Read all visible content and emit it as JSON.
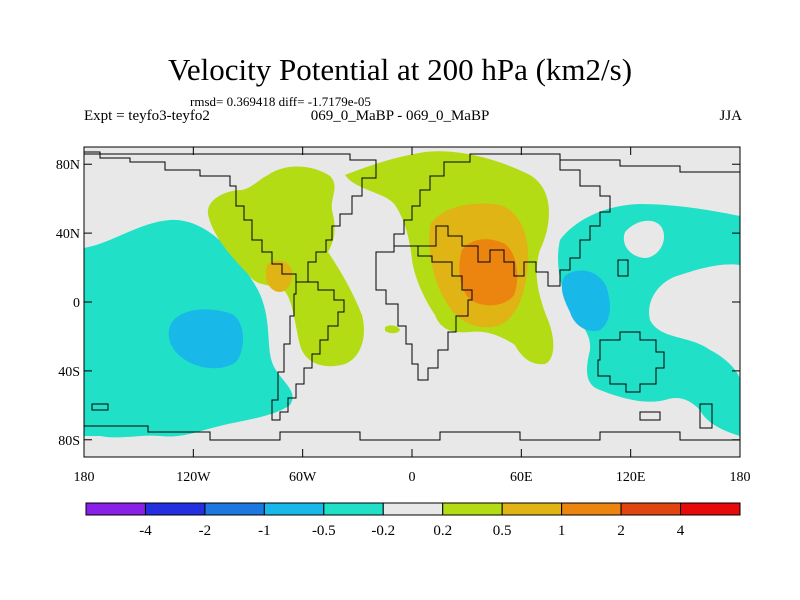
{
  "title": "Velocity Potential at 200 hPa (km2/s)",
  "stats": "rmsd= 0.369418  diff= -1.7179e-05",
  "left_label": "Expt = teyfo3-teyfo2",
  "center_label": "069_0_MaBP - 069_0_MaBP",
  "right_label": "JJA",
  "lat_ticks": [
    {
      "label": "80N",
      "value": 80
    },
    {
      "label": "40N",
      "value": 40
    },
    {
      "label": "0",
      "value": 0
    },
    {
      "label": "40S",
      "value": -40
    },
    {
      "label": "80S",
      "value": -80
    }
  ],
  "lon_ticks": [
    {
      "label": "180",
      "value": -180
    },
    {
      "label": "120W",
      "value": -120
    },
    {
      "label": "60W",
      "value": -60
    },
    {
      "label": "0",
      "value": 0
    },
    {
      "label": "60E",
      "value": 60
    },
    {
      "label": "120E",
      "value": 120
    },
    {
      "label": "180",
      "value": 180
    }
  ],
  "colorbar": {
    "labels": [
      "-4",
      "-2",
      "-1",
      "-0.5",
      "-0.2",
      "0.2",
      "0.5",
      "1",
      "2",
      "4"
    ],
    "colors": [
      "#8a20e8",
      "#2430e0",
      "#1a78e0",
      "#18b8e8",
      "#20e0c8",
      "#e8e8e8",
      "#b4dc14",
      "#e0b414",
      "#ec8410",
      "#e04410",
      "#e80a0a"
    ]
  },
  "colors": {
    "background": "#e8e8e8",
    "cyan": "#20e0c8",
    "blue": "#18b8e8",
    "yellow_green": "#b4dc14",
    "gold": "#e0b414",
    "orange": "#ec8410"
  }
}
